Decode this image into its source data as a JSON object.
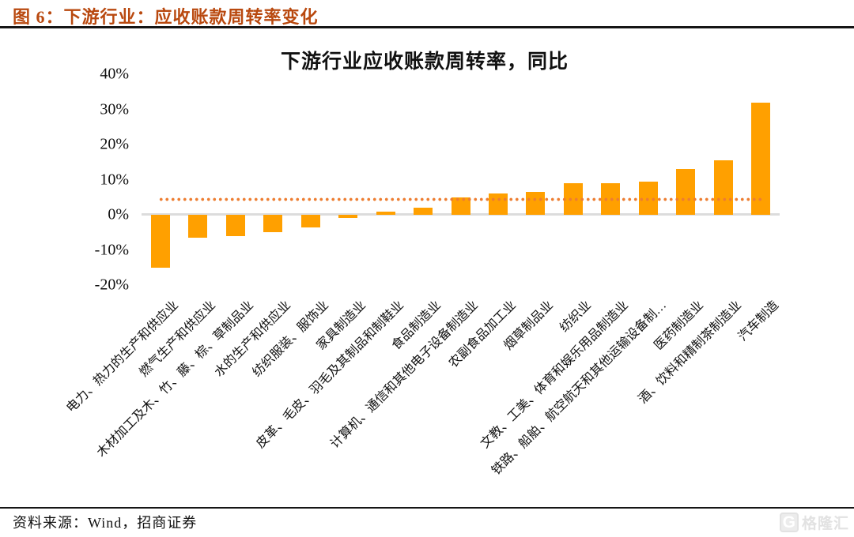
{
  "figure": {
    "caption": "图 6：下游行业：应收账款周转率变化",
    "caption_color": "#B9490F"
  },
  "chart_data": {
    "type": "bar",
    "title": "下游行业应收账款周转率，同比",
    "categories": [
      "电力、热力的生产和供应业",
      "燃气生产和供应业",
      "木材加工及木、竹、藤、棕、草制品业",
      "水的生产和供应业",
      "纺织服装、服饰业",
      "家具制造业",
      "皮革、毛皮、羽毛及其制品和制鞋业",
      "食品制造业",
      "计算机、通信和其他电子设备制造业",
      "农副食品加工业",
      "烟草制品业",
      "纺织业",
      "文教、工美、体育和娱乐用品制造业",
      "铁路、船舶、航空航天和其他运输设备制…",
      "医药制造业",
      "酒、饮料和精制茶制造业",
      "汽车制造"
    ],
    "values": [
      -15,
      -6.5,
      -6,
      -5,
      -3.5,
      -1,
      1,
      2,
      5,
      6,
      6.5,
      9,
      9,
      9.5,
      13,
      15.5,
      32
    ],
    "reference_line_value": 4.3,
    "ylim": [
      -20,
      40
    ],
    "ytick_labels": [
      "40%",
      "30%",
      "20%",
      "10%",
      "0%",
      "-10%",
      "-20%"
    ],
    "legend": "none",
    "grid": "off",
    "bar_color": "#FFA000",
    "reference_line_color": "#ED7D31",
    "axis_line_color": "#DCDCDC"
  },
  "source_note": "资料来源：Wind，招商证券",
  "watermark": {
    "logo": "G",
    "text": "格隆汇"
  }
}
